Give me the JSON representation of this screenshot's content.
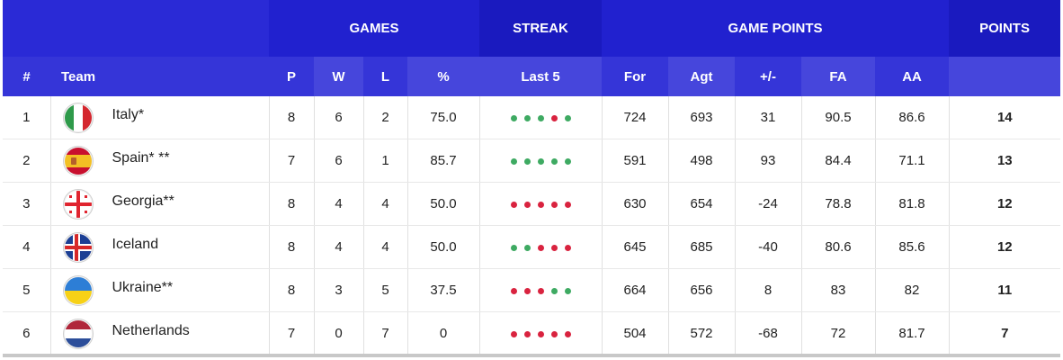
{
  "colors": {
    "header_dark": "#1a1abf",
    "header": "#2121cf",
    "subheader": "#3535d8",
    "win": "#3eaa62",
    "loss": "#d9233f"
  },
  "groups": {
    "games": "GAMES",
    "streak": "STREAK",
    "game_points": "GAME POINTS",
    "points": "POINTS"
  },
  "columns": {
    "rank": "#",
    "team": "Team",
    "p": "P",
    "w": "W",
    "l": "L",
    "pct": "%",
    "last5": "Last 5",
    "for": "For",
    "agt": "Agt",
    "diff": "+/-",
    "fa": "FA",
    "aa": "AA"
  },
  "rows": [
    {
      "rank": "1",
      "team": "Italy*",
      "flag": "italy-flag-icon",
      "p": "8",
      "w": "6",
      "l": "2",
      "pct": "75.0",
      "streak": [
        "W",
        "W",
        "W",
        "L",
        "W"
      ],
      "for": "724",
      "agt": "693",
      "diff": "31",
      "fa": "90.5",
      "aa": "86.6",
      "points": "14"
    },
    {
      "rank": "2",
      "team": "Spain* **",
      "flag": "spain-flag-icon",
      "p": "7",
      "w": "6",
      "l": "1",
      "pct": "85.7",
      "streak": [
        "W",
        "W",
        "W",
        "W",
        "W"
      ],
      "for": "591",
      "agt": "498",
      "diff": "93",
      "fa": "84.4",
      "aa": "71.1",
      "points": "13"
    },
    {
      "rank": "3",
      "team": "Georgia**",
      "flag": "georgia-flag-icon",
      "p": "8",
      "w": "4",
      "l": "4",
      "pct": "50.0",
      "streak": [
        "L",
        "L",
        "L",
        "L",
        "L"
      ],
      "for": "630",
      "agt": "654",
      "diff": "-24",
      "fa": "78.8",
      "aa": "81.8",
      "points": "12"
    },
    {
      "rank": "4",
      "team": "Iceland",
      "flag": "iceland-flag-icon",
      "p": "8",
      "w": "4",
      "l": "4",
      "pct": "50.0",
      "streak": [
        "W",
        "W",
        "L",
        "L",
        "L"
      ],
      "for": "645",
      "agt": "685",
      "diff": "-40",
      "fa": "80.6",
      "aa": "85.6",
      "points": "12"
    },
    {
      "rank": "5",
      "team": "Ukraine**",
      "flag": "ukraine-flag-icon",
      "p": "8",
      "w": "3",
      "l": "5",
      "pct": "37.5",
      "streak": [
        "L",
        "L",
        "L",
        "W",
        "W"
      ],
      "for": "664",
      "agt": "656",
      "diff": "8",
      "fa": "83",
      "aa": "82",
      "points": "11"
    },
    {
      "rank": "6",
      "team": "Netherlands",
      "flag": "netherlands-flag-icon",
      "p": "7",
      "w": "0",
      "l": "7",
      "pct": "0",
      "streak": [
        "L",
        "L",
        "L",
        "L",
        "L"
      ],
      "for": "504",
      "agt": "572",
      "diff": "-68",
      "fa": "72",
      "aa": "81.7",
      "points": "7"
    }
  ]
}
